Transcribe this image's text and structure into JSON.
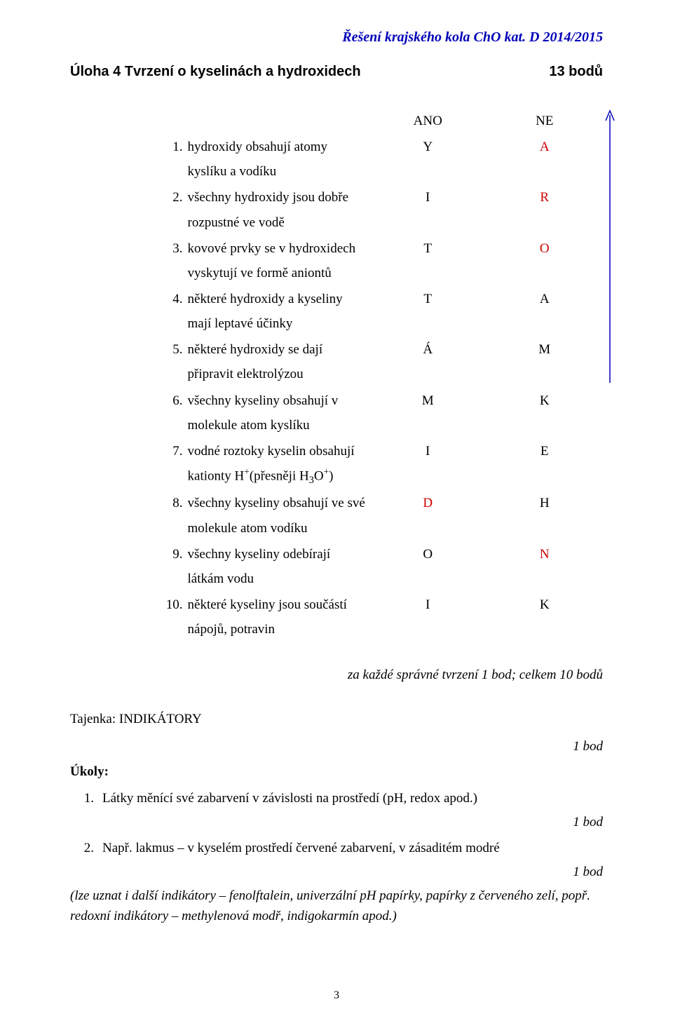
{
  "header": "Řešení krajského kola ChO kat. D 2014/2015",
  "title_left": "Úloha 4   Tvrzení o kyselinách a hydroxidech",
  "title_right": "13 bodů",
  "cols": {
    "ano": "ANO",
    "ne": "NE"
  },
  "rows": [
    {
      "n": "1.",
      "text": "hydroxidy obsahují atomy kyslíku a vodíku",
      "ano": "Y",
      "ne": "A",
      "ano_red": false,
      "ne_red": true
    },
    {
      "n": "2.",
      "text": "všechny hydroxidy jsou dobře rozpustné ve vodě",
      "ano": "I",
      "ne": "R",
      "ano_red": false,
      "ne_red": true
    },
    {
      "n": "3.",
      "text": "kovové prvky se v hydroxidech vyskytují ve formě aniontů",
      "ano": "T",
      "ne": "O",
      "ano_red": false,
      "ne_red": true
    },
    {
      "n": "4.",
      "text": "některé hydroxidy a kyseliny mají leptavé účinky",
      "ano": "T",
      "ne": "A",
      "ano_red": false,
      "ne_red": false
    },
    {
      "n": "5.",
      "text": "některé hydroxidy se dají připravit elektrolýzou",
      "ano": "Á",
      "ne": "M",
      "ano_red": false,
      "ne_red": false
    },
    {
      "n": "6.",
      "text": "všechny kyseliny obsahují v molekule atom kyslíku",
      "ano": "M",
      "ne": "K",
      "ano_red": false,
      "ne_red": false
    },
    {
      "n": "7.",
      "text": "vodné roztoky kyselin obsahují kationty H",
      "suffix": "(přesněji H",
      "suffix2": ")",
      "sup1": "+",
      "sub": "3",
      "o": "O",
      "sup2": "+",
      "ano": "I",
      "ne": "E",
      "ano_red": false,
      "ne_red": false,
      "special": true
    },
    {
      "n": "8.",
      "text": "všechny kyseliny obsahují ve své molekule atom vodíku",
      "ano": "D",
      "ne": "H",
      "ano_red": true,
      "ne_red": false
    },
    {
      "n": "9.",
      "text": "všechny kyseliny odebírají látkám vodu",
      "ano": "O",
      "ne": "N",
      "ano_red": false,
      "ne_red": true
    },
    {
      "n": "10.",
      "text": "některé kyseliny jsou součástí nápojů, potravin",
      "ano": "I",
      "ne": "K",
      "ano_red": false,
      "ne_red": false
    }
  ],
  "arrow_color": "#0000b8",
  "scoring_note": "za každé správné tvrzení 1 bod; celkem 10 bodů",
  "tajenka_label": "Tajenka: INDIKÁTORY",
  "one_point": "1 bod",
  "ukoly_label": "Úkoly:",
  "tasks": [
    {
      "n": "1.",
      "text": "Látky měnící své zabarvení v závislosti na prostředí (pH, redox apod.)"
    },
    {
      "n": "2.",
      "text": "Např. lakmus – v kyselém prostředí červené zabarvení, v zásaditém modré"
    }
  ],
  "note": "(lze uznat i další indikátory – fenolftalein, univerzální pH papírky, papírky z červeného zelí, popř. redoxní indikátory – methylenová modř, indigokarmín apod.)",
  "page_number": "3"
}
